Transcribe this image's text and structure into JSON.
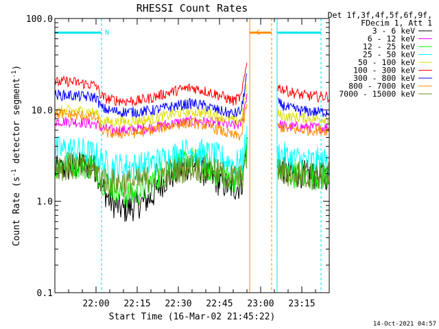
{
  "chart_data": {
    "type": "line",
    "title": "RHESSI Count Rates",
    "xlabel": "Start Time (16-Mar-02 21:45:22)",
    "ylabel": "Count Rate (s⁻¹ detector segment⁻¹)",
    "y_scale": "log",
    "ylim": [
      0.1,
      100.0
    ],
    "y_ticks": [
      "100.0",
      "10.0",
      "1.0",
      "0.1"
    ],
    "x_ticks": [
      "22:00",
      "22:15",
      "22:30",
      "22:45",
      "23:00",
      "23:15"
    ],
    "xlim": [
      "21:45",
      "23:25"
    ],
    "legend_header": [
      "Det 1f,3f,4f,5f,6f,9f,",
      "FDecim 1, Att 1"
    ],
    "legend_position": "top-right, outside plot",
    "footer_timestamp": "14-Oct-2021 04:57",
    "data_gaps": [
      [
        "22:57",
        "23:05"
      ]
    ],
    "flags": [
      {
        "label": "N",
        "start": "21:45",
        "end": "22:02",
        "level": 70,
        "color": "#00e5ee"
      },
      {
        "label": "S",
        "start": "22:56",
        "end": "23:04",
        "level": 70,
        "color": "#ff8c00"
      },
      {
        "label": "",
        "start": "23:06",
        "end": "23:22",
        "level": 70,
        "color": "#00e5ee"
      }
    ],
    "markers": [
      {
        "time": "21:45",
        "color": "#00e5ee",
        "style": "solid"
      },
      {
        "time": "22:02",
        "color": "#00e5ee",
        "style": "dashed"
      },
      {
        "time": "22:56",
        "color": "#ff8c00",
        "style": "solid"
      },
      {
        "time": "23:04",
        "color": "#ff8c00",
        "style": "dashed"
      },
      {
        "time": "23:06",
        "color": "#00e5ee",
        "style": "solid"
      },
      {
        "time": "23:22",
        "color": "#00e5ee",
        "style": "dashed"
      }
    ],
    "x": [
      "21:45",
      "21:50",
      "21:55",
      "22:00",
      "22:02",
      "22:05",
      "22:10",
      "22:15",
      "22:20",
      "22:25",
      "22:30",
      "22:35",
      "22:40",
      "22:45",
      "22:50",
      "22:53",
      "22:55",
      "22:57",
      "23:05",
      "23:06",
      "23:10",
      "23:15",
      "23:20",
      "23:22"
    ],
    "series": [
      {
        "name": "3 - 6 keV",
        "color": "#000000",
        "values": [
          2.2,
          2.3,
          2.5,
          2.3,
          1.5,
          1.0,
          0.8,
          0.9,
          1.1,
          1.7,
          2.1,
          2.6,
          2.0,
          1.6,
          1.4,
          1.5,
          4,
          null,
          null,
          2.5,
          2.0,
          2.0,
          1.9,
          1.9
        ]
      },
      {
        "name": "6 - 12 keV",
        "color": "#ff00ff",
        "values": [
          7.5,
          7.5,
          7.3,
          7.0,
          6.4,
          6.0,
          6.0,
          6.2,
          6.4,
          6.8,
          7.3,
          7.5,
          7.4,
          7.2,
          6.7,
          7.0,
          15,
          null,
          null,
          7.0,
          6.5,
          6.5,
          6.4,
          6.4
        ]
      },
      {
        "name": "12 - 25 keV",
        "color": "#00ee00",
        "values": [
          2.5,
          2.6,
          2.5,
          2.4,
          1.7,
          1.5,
          1.2,
          1.2,
          1.6,
          2.1,
          2.5,
          2.8,
          2.4,
          2.0,
          1.8,
          1.7,
          3.5,
          null,
          null,
          2.3,
          2.0,
          2.0,
          1.9,
          1.9
        ]
      },
      {
        "name": "25 - 50 keV",
        "color": "#00ffff",
        "values": [
          3.6,
          3.7,
          3.5,
          3.2,
          2.7,
          2.4,
          2.4,
          2.4,
          2.6,
          2.9,
          3.3,
          3.6,
          3.3,
          3.0,
          2.6,
          2.6,
          5,
          null,
          null,
          3.4,
          3.0,
          2.8,
          2.7,
          2.7
        ]
      },
      {
        "name": "50 - 100 keV",
        "color": "#dddd00",
        "values": [
          9.5,
          9.8,
          9.7,
          9.3,
          7.6,
          7.4,
          7.4,
          7.6,
          7.9,
          8.6,
          9.2,
          9.6,
          9.2,
          8.5,
          7.6,
          7.6,
          18,
          null,
          null,
          9.0,
          8.4,
          8.2,
          8.0,
          8.0
        ]
      },
      {
        "name": "100 - 300 keV",
        "color": "#ff0000",
        "values": [
          20,
          20.5,
          19.5,
          18.5,
          14,
          13,
          12.5,
          12.5,
          13.5,
          15,
          16.5,
          17.5,
          16,
          14.5,
          12.5,
          14,
          35,
          null,
          null,
          18,
          16,
          14.5,
          14,
          14
        ]
      },
      {
        "name": "300 - 800 keV",
        "color": "#0000ff",
        "values": [
          14.5,
          14.5,
          14,
          13.8,
          10.5,
          9.8,
          9.5,
          9.5,
          9.8,
          10.5,
          11.2,
          11.8,
          11,
          9.8,
          9.0,
          9.8,
          25,
          null,
          null,
          12,
          10.5,
          9.8,
          9.5,
          9.5
        ]
      },
      {
        "name": "800 - 7000 keV",
        "color": "#ff8c00",
        "values": [
          9.0,
          9.0,
          8.6,
          8.2,
          6.0,
          5.5,
          5.5,
          5.6,
          6.0,
          6.5,
          7.0,
          7.2,
          6.8,
          6.0,
          5.2,
          5.2,
          12,
          null,
          null,
          6.5,
          6.2,
          6.0,
          6.0,
          6.0
        ]
      },
      {
        "name": "7000 - 15000 keV",
        "color": "#6b8e23",
        "values": [
          2.4,
          2.4,
          2.3,
          2.2,
          1.8,
          1.6,
          1.6,
          1.6,
          1.8,
          2.0,
          2.2,
          2.4,
          2.2,
          2.0,
          1.8,
          1.8,
          3,
          null,
          null,
          2.2,
          2.0,
          1.9,
          1.9,
          1.9
        ]
      }
    ]
  }
}
